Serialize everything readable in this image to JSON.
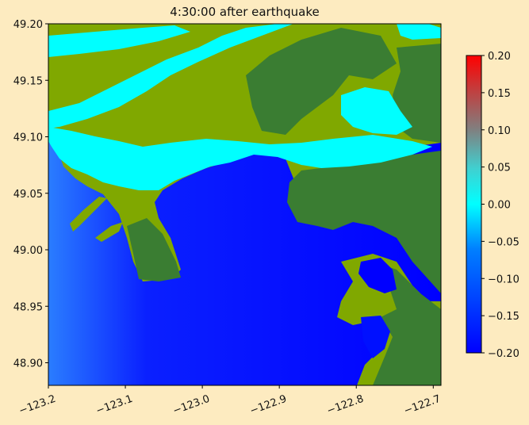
{
  "title": "4:30:00 after earthquake",
  "map": {
    "type": "raster-map",
    "x_ticks": [
      "−123.2",
      "−123.1",
      "−123.0",
      "−122.9",
      "−122.8",
      "−122.7"
    ],
    "x_tick_values": [
      -123.2,
      -123.1,
      -123.0,
      -122.9,
      -122.8,
      -122.7
    ],
    "y_ticks": [
      "49.20",
      "49.15",
      "49.10",
      "49.05",
      "49.00",
      "48.95",
      "48.90"
    ],
    "y_tick_values": [
      49.2,
      49.15,
      49.1,
      49.05,
      49.0,
      48.95,
      48.9
    ],
    "xlim": [
      -123.2,
      -122.69
    ],
    "ylim": [
      48.88,
      49.2
    ],
    "x_tick_rotation_deg": 20
  },
  "colorbar": {
    "ticks": [
      "0.20",
      "0.15",
      "0.10",
      "0.05",
      "0.00",
      "−0.05",
      "−0.10",
      "−0.15",
      "−0.20"
    ],
    "tick_values": [
      0.2,
      0.15,
      0.1,
      0.05,
      0.0,
      -0.05,
      -0.1,
      -0.15,
      -0.2
    ],
    "range": [
      -0.2,
      0.2
    ],
    "colors": [
      "#0000ff",
      "#00e5ff",
      "#00ffff",
      "#40d0d0",
      "#808080",
      "#ff0000"
    ]
  },
  "colors": {
    "background": "#fdebc0",
    "land_low": "#80a800",
    "land_high": "#3a7d32",
    "water_deep": "#0000ff",
    "water_shallow": "#00ffff"
  }
}
